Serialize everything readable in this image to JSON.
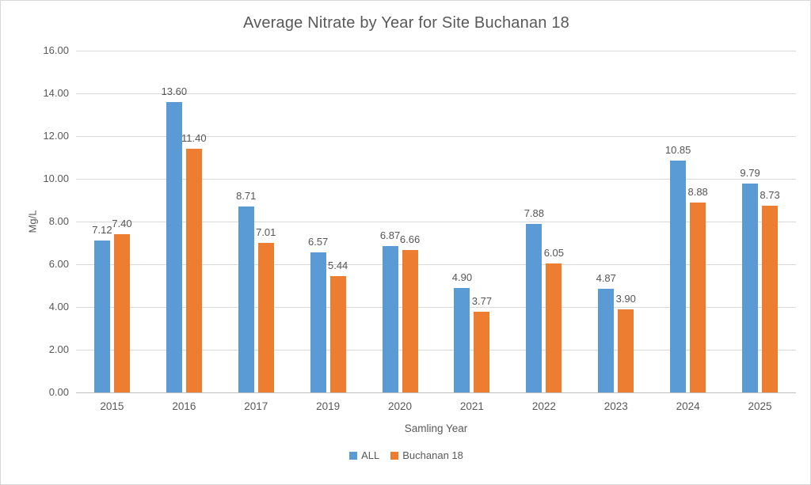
{
  "chart_data": {
    "type": "bar",
    "title": "Average Nitrate by Year for Site Buchanan 18",
    "xlabel": "Samling Year",
    "ylabel": "Mg/L",
    "categories": [
      "2015",
      "2016",
      "2017",
      "2019",
      "2020",
      "2021",
      "2022",
      "2023",
      "2024",
      "2025"
    ],
    "series": [
      {
        "name": "ALL",
        "color": "#5B9BD5",
        "values": [
          7.12,
          13.6,
          8.71,
          6.57,
          6.87,
          4.9,
          7.88,
          4.87,
          10.85,
          9.79
        ]
      },
      {
        "name": "Buchanan 18",
        "color": "#ED7D31",
        "values": [
          7.4,
          11.4,
          7.01,
          5.44,
          6.66,
          3.77,
          6.05,
          3.9,
          8.88,
          8.73
        ]
      }
    ],
    "ylim": [
      0,
      16
    ],
    "ytick_step": 2,
    "ytick_labels": [
      "0.00",
      "2.00",
      "4.00",
      "6.00",
      "8.00",
      "10.00",
      "12.00",
      "14.00",
      "16.00"
    ],
    "grid": true,
    "data_labels": true,
    "data_label_decimals": 2,
    "legend_position": "bottom"
  },
  "colors": {
    "series_all": "#5B9BD5",
    "series_buchanan_18": "#ED7D31",
    "gridline": "#D9D9D9",
    "axis_baseline": "#BFBFBF",
    "text": "#595959",
    "border": "#D7D7D7",
    "background": "#FFFFFF"
  }
}
